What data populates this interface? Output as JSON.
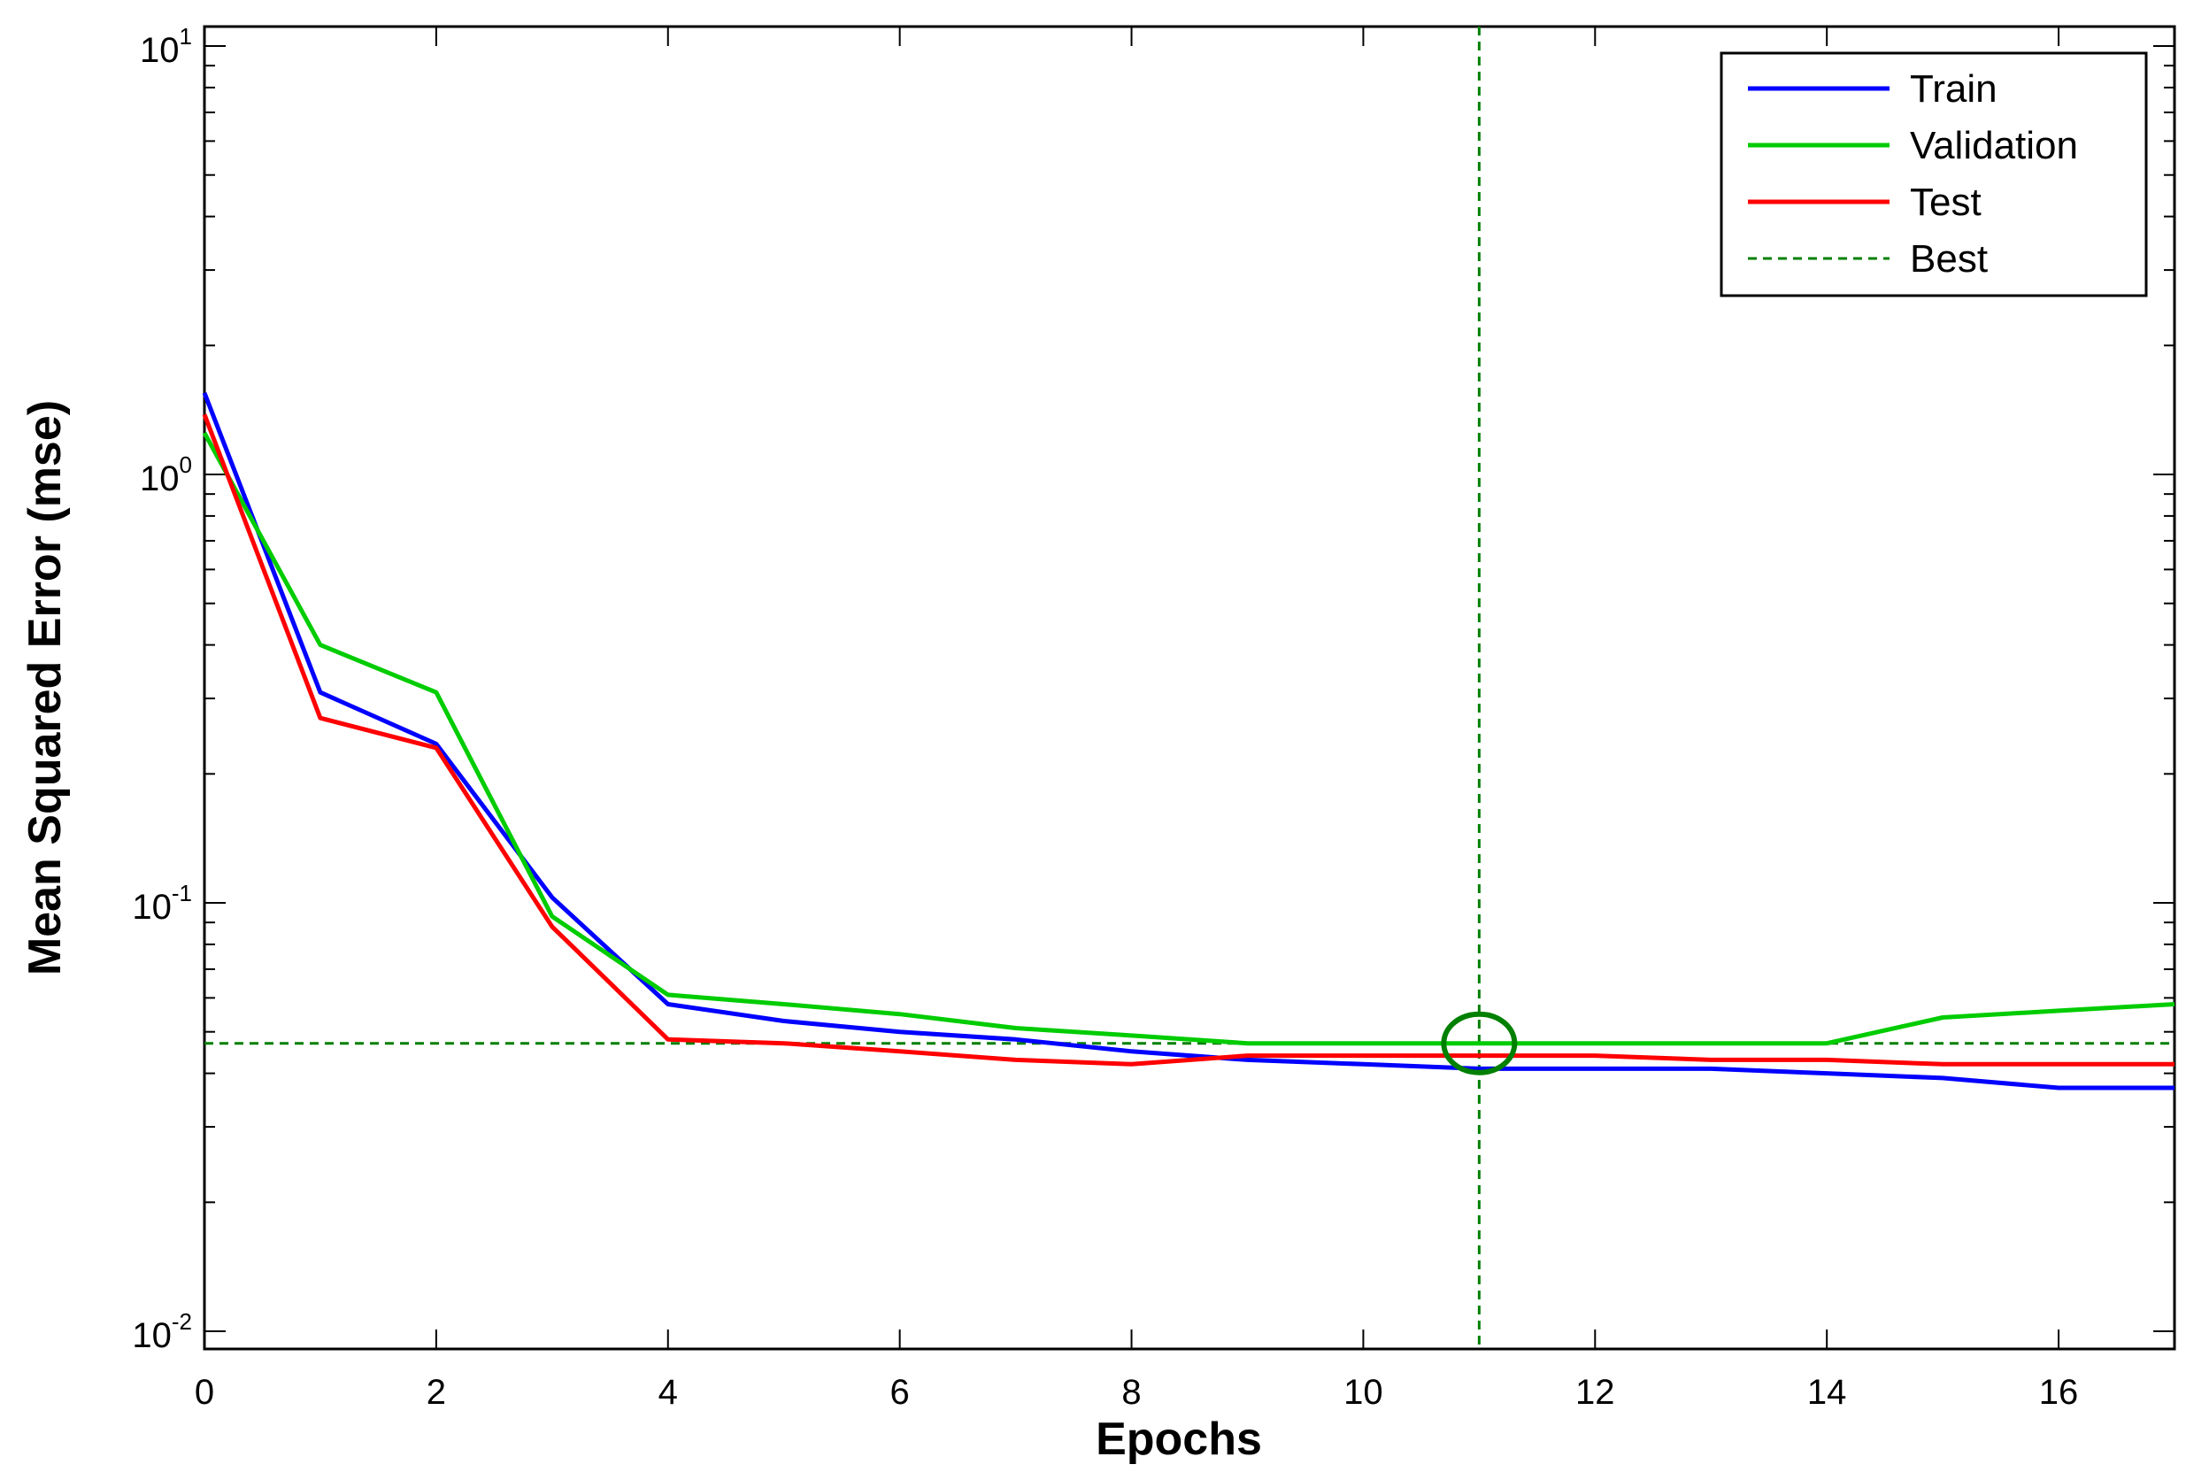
{
  "chart_data": {
    "type": "line",
    "title": "",
    "xlabel": "Epochs",
    "ylabel": "Mean Squared Error  (mse)",
    "yscale": "log",
    "xlim": [
      0,
      17
    ],
    "ylim": [
      0.01,
      10
    ],
    "x_ticks": [
      0,
      2,
      4,
      6,
      8,
      10,
      12,
      14,
      16
    ],
    "y_ticks": [
      {
        "value": 0.01,
        "base": "10",
        "exp": "-2"
      },
      {
        "value": 0.1,
        "base": "10",
        "exp": "-1"
      },
      {
        "value": 1,
        "base": "10",
        "exp": "0"
      },
      {
        "value": 10,
        "base": "10",
        "exp": "1"
      }
    ],
    "grid": false,
    "legend_position": "top-right",
    "x": [
      0,
      1,
      2,
      3,
      4,
      5,
      6,
      7,
      8,
      9,
      10,
      11,
      12,
      13,
      14,
      15,
      16,
      17
    ],
    "series": [
      {
        "name": "Train",
        "color": "#0000ff",
        "values": [
          1.55,
          0.31,
          0.235,
          0.103,
          0.058,
          0.053,
          0.05,
          0.048,
          0.045,
          0.043,
          0.042,
          0.041,
          0.041,
          0.041,
          0.04,
          0.039,
          0.037,
          0.037
        ]
      },
      {
        "name": "Validation",
        "color": "#00cc00",
        "values": [
          1.25,
          0.4,
          0.31,
          0.093,
          0.061,
          0.058,
          0.055,
          0.051,
          0.049,
          0.047,
          0.047,
          0.047,
          0.047,
          0.047,
          0.047,
          0.054,
          0.056,
          0.058
        ]
      },
      {
        "name": "Test",
        "color": "#ff0000",
        "values": [
          1.38,
          0.27,
          0.23,
          0.088,
          0.048,
          0.047,
          0.045,
          0.043,
          0.042,
          0.044,
          0.044,
          0.044,
          0.044,
          0.043,
          0.043,
          0.042,
          0.042,
          0.042
        ]
      }
    ],
    "best": {
      "name": "Best",
      "color": "#008000",
      "epoch": 11,
      "value": 0.047
    }
  }
}
